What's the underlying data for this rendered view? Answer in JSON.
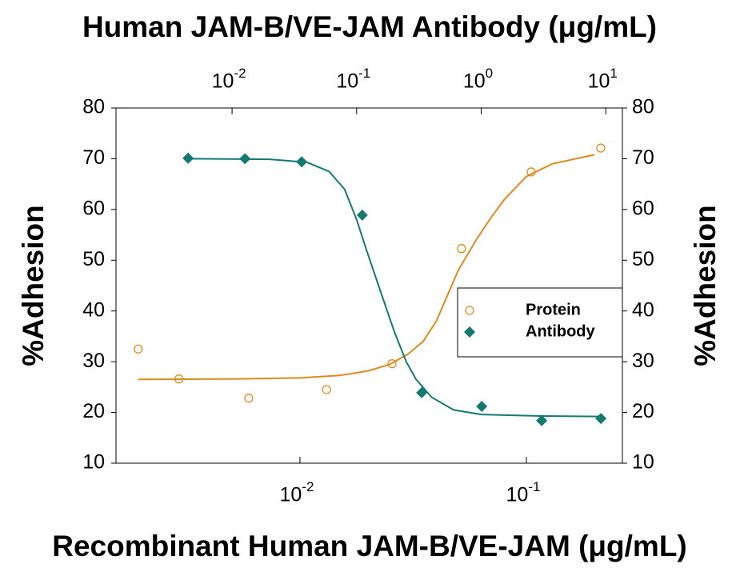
{
  "chart_data": {
    "type": "scatter",
    "x2label": "Human JAM-B/VE-JAM Antibody (μg/mL)",
    "xlabel": "Recombinant Human JAM-B/VE-JAM (μg/mL)",
    "ylabel": "%Adhesion",
    "y2label": "%Adhesion",
    "xscale": "log",
    "xlim": [
      0.00154,
      0.2655
    ],
    "xticks": [
      {
        "value": 0.01,
        "label": "10",
        "exponent": "-2"
      },
      {
        "value": 0.1,
        "label": "10",
        "exponent": "-1"
      }
    ],
    "x2lim": [
      0.00117,
      13.6
    ],
    "x2ticks": [
      {
        "value": 0.01,
        "label": "10",
        "exponent": "-2"
      },
      {
        "value": 0.1,
        "label": "10",
        "exponent": "-1"
      },
      {
        "value": 1,
        "label": "10",
        "exponent": "0"
      },
      {
        "value": 10,
        "label": "10",
        "exponent": "1"
      }
    ],
    "ylim": [
      10,
      80
    ],
    "yticks": [
      10,
      20,
      30,
      40,
      50,
      60,
      70,
      80
    ],
    "y2lim": [
      10,
      80
    ],
    "y2ticks": [
      10,
      20,
      30,
      40,
      50,
      60,
      70,
      80
    ],
    "legend": "right",
    "series": [
      {
        "name": "Protein",
        "color": "#e08a1e",
        "marker": "circle-open",
        "x": [
          0.00193,
          0.00292,
          0.00594,
          0.0131,
          0.0255,
          0.0517,
          0.105,
          0.213
        ],
        "values": [
          32.5,
          26.6,
          22.8,
          24.5,
          29.6,
          52.3,
          67.4,
          72.1
        ],
        "fit": {
          "x": [
            0.00193,
            0.005,
            0.01,
            0.015,
            0.02,
            0.025,
            0.03,
            0.035,
            0.04,
            0.05,
            0.06,
            0.07,
            0.08,
            0.1,
            0.13,
            0.2
          ],
          "values": [
            26.5,
            26.6,
            26.8,
            27.3,
            28.2,
            29.5,
            31.5,
            34,
            38,
            48,
            54,
            58.5,
            62,
            66.5,
            69,
            70.8
          ]
        }
      },
      {
        "name": "Antibody",
        "color": "#137a72",
        "marker": "diamond",
        "axis": "x2",
        "x": [
          0.00444,
          0.0127,
          0.0362,
          0.111,
          0.333,
          1.01,
          3.06,
          9.14
        ],
        "values": [
          70.1,
          70,
          69.4,
          58.9,
          23.9,
          21.2,
          18.4,
          18.8
        ],
        "fit": {
          "x": [
            0.00444,
            0.02,
            0.04,
            0.06,
            0.08,
            0.1,
            0.12,
            0.15,
            0.2,
            0.25,
            0.3,
            0.4,
            0.6,
            1,
            3,
            9.14
          ],
          "values": [
            70,
            69.9,
            69.3,
            67.5,
            64,
            58,
            52,
            45,
            36,
            30,
            26.5,
            23,
            20.5,
            19.6,
            19.3,
            19.2
          ]
        }
      }
    ]
  }
}
